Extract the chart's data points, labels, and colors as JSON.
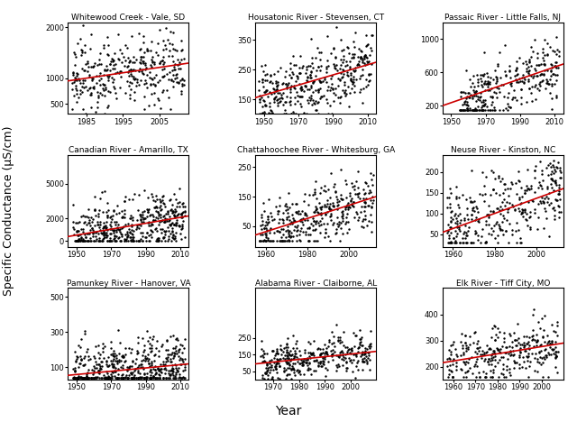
{
  "subplots": [
    {
      "title": "Whitewood Creek - Vale, SD",
      "xmin": 1980,
      "xmax": 2013,
      "ymin": 300,
      "ymax": 2100,
      "yticks": [
        500,
        1000,
        2000
      ],
      "xticks": [
        1985,
        1995,
        2005
      ],
      "trend_x": [
        1980,
        2013
      ],
      "trend_y": [
        950,
        1300
      ],
      "seed": 42,
      "n": 350,
      "scatter_xmin": 1981,
      "scatter_xmax": 2012,
      "scatter_ystd": 350,
      "scatter_ymin": 300,
      "scatter_ymax": 2050
    },
    {
      "title": "Housatonic River - Stevensen, CT",
      "xmin": 1945,
      "xmax": 2015,
      "ymin": 100,
      "ymax": 410,
      "yticks": [
        150,
        250,
        350
      ],
      "xticks": [
        1950,
        1970,
        1990,
        2010
      ],
      "trend_x": [
        1945,
        2015
      ],
      "trend_y": [
        155,
        275
      ],
      "seed": 7,
      "n": 400,
      "scatter_xmin": 1947,
      "scatter_xmax": 2013,
      "scatter_ystd": 55,
      "scatter_ymin": 100,
      "scatter_ymax": 400
    },
    {
      "title": "Passaic River - Little Falls, NJ",
      "xmin": 1945,
      "xmax": 2015,
      "ymin": 100,
      "ymax": 1200,
      "yticks": [
        200,
        600,
        1000
      ],
      "xticks": [
        1950,
        1970,
        1990,
        2010
      ],
      "trend_x": [
        1945,
        2015
      ],
      "trend_y": [
        200,
        700
      ],
      "seed": 13,
      "n": 320,
      "scatter_xmin": 1955,
      "scatter_xmax": 2013,
      "scatter_ystd": 200,
      "scatter_ymin": 150,
      "scatter_ymax": 1150
    },
    {
      "title": "Canadian River - Amarillo, TX",
      "xmin": 1945,
      "xmax": 2015,
      "ymin": -500,
      "ymax": 7500,
      "yticks": [
        0,
        2000,
        5000
      ],
      "xticks": [
        1950,
        1970,
        1990,
        2010
      ],
      "trend_x": [
        1945,
        2015
      ],
      "trend_y": [
        400,
        2200
      ],
      "seed": 21,
      "n": 500,
      "scatter_xmin": 1948,
      "scatter_xmax": 2013,
      "scatter_ystd": 1200,
      "scatter_ymin": 0,
      "scatter_ymax": 7000
    },
    {
      "title": "Chattahoochee River - Whitesburg, GA",
      "xmin": 1955,
      "xmax": 2013,
      "ymin": -20,
      "ymax": 290,
      "yticks": [
        50,
        150,
        250
      ],
      "xticks": [
        1960,
        1980,
        2000
      ],
      "trend_x": [
        1955,
        2013
      ],
      "trend_y": [
        20,
        150
      ],
      "seed": 55,
      "n": 380,
      "scatter_xmin": 1957,
      "scatter_xmax": 2012,
      "scatter_ystd": 50,
      "scatter_ymin": 0,
      "scatter_ymax": 280
    },
    {
      "title": "Neuse River - Kinston, NC",
      "xmin": 1955,
      "xmax": 2013,
      "ymin": 20,
      "ymax": 240,
      "yticks": [
        50,
        100,
        150,
        200
      ],
      "xticks": [
        1960,
        1980,
        2000
      ],
      "trend_x": [
        1955,
        2013
      ],
      "trend_y": [
        55,
        160
      ],
      "seed": 88,
      "n": 350,
      "scatter_xmin": 1957,
      "scatter_xmax": 2012,
      "scatter_ystd": 45,
      "scatter_ymin": 30,
      "scatter_ymax": 230
    },
    {
      "title": "Pamunkey River - Hanover, VA",
      "xmin": 1945,
      "xmax": 2015,
      "ymin": 30,
      "ymax": 550,
      "yticks": [
        100,
        300,
        500
      ],
      "xticks": [
        1950,
        1970,
        1990,
        2010
      ],
      "trend_x": [
        1945,
        2015
      ],
      "trend_y": [
        55,
        120
      ],
      "seed": 101,
      "n": 500,
      "scatter_xmin": 1948,
      "scatter_xmax": 2013,
      "scatter_ystd": 80,
      "scatter_ymin": 40,
      "scatter_ymax": 530
    },
    {
      "title": "Alabama River - Claiborne, AL",
      "xmin": 1963,
      "xmax": 2010,
      "ymin": 0,
      "ymax": 550,
      "yticks": [
        50,
        150,
        250
      ],
      "xticks": [
        1970,
        1980,
        1990,
        2000
      ],
      "trend_x": [
        1963,
        2010
      ],
      "trend_y": [
        95,
        170
      ],
      "seed": 77,
      "n": 380,
      "scatter_xmin": 1965,
      "scatter_xmax": 2008,
      "scatter_ystd": 55,
      "scatter_ymin": 5,
      "scatter_ymax": 520
    },
    {
      "title": "Elk River - Tiff City, MO",
      "xmin": 1955,
      "xmax": 2010,
      "ymin": 150,
      "ymax": 500,
      "yticks": [
        200,
        300,
        400
      ],
      "xticks": [
        1960,
        1970,
        1980,
        1990,
        2000
      ],
      "trend_x": [
        1955,
        2010
      ],
      "trend_y": [
        215,
        290
      ],
      "seed": 33,
      "n": 320,
      "scatter_xmin": 1957,
      "scatter_xmax": 2008,
      "scatter_ystd": 55,
      "scatter_ymin": 160,
      "scatter_ymax": 490
    }
  ],
  "ylabel": "Specific Conductance (μS/cm)",
  "xlabel": "Year",
  "trend_color": "#cc0000",
  "scatter_color": "black",
  "scatter_size": 3,
  "bg_color": "white",
  "figsize": [
    6.4,
    4.68
  ],
  "dpi": 100,
  "title_fontsize": 6.5,
  "tick_fontsize": 6,
  "label_fontsize": 9,
  "xlabel_fontsize": 10
}
